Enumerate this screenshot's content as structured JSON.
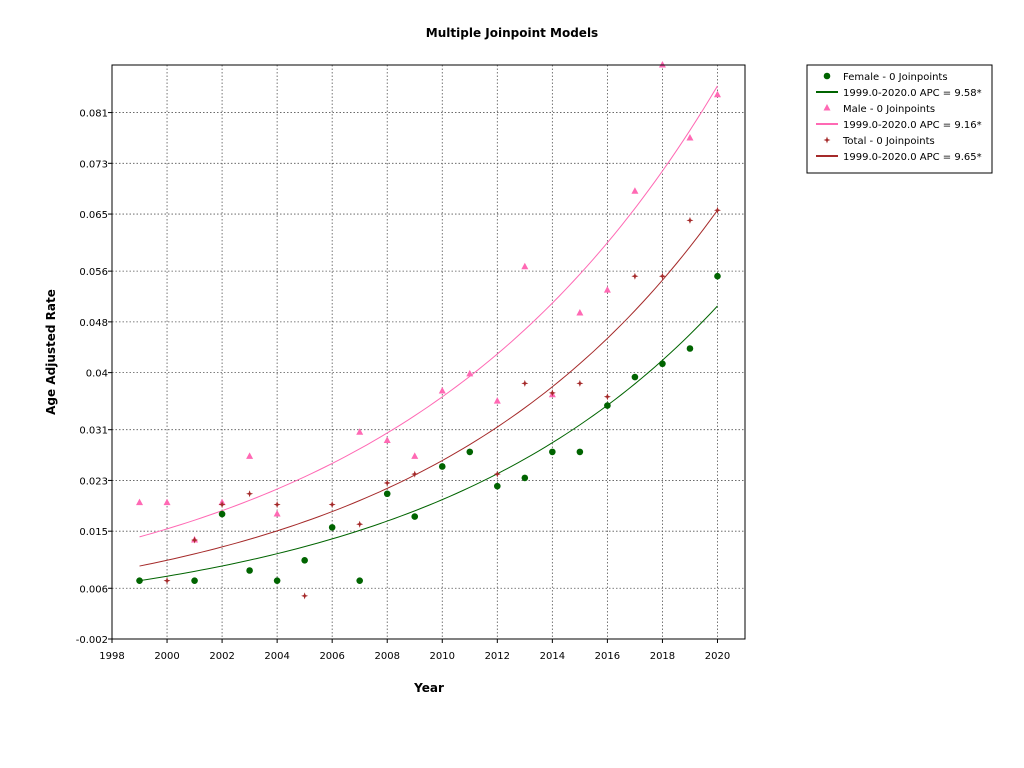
{
  "chart_data": {
    "type": "scatter",
    "title": "Multiple Joinpoint Models",
    "xlabel": "Year",
    "ylabel": "Age Adjusted Rate",
    "xlim": [
      1998,
      2021
    ],
    "ylim": [
      -0.002,
      0.0885
    ],
    "xticks": [
      "1998",
      "2000",
      "2002",
      "2004",
      "2006",
      "2008",
      "2010",
      "2012",
      "2014",
      "2016",
      "2018",
      "2020"
    ],
    "yticks": [
      "-0.002",
      "0.006",
      "0.015",
      "0.023",
      "0.031",
      "0.04",
      "0.048",
      "0.056",
      "0.065",
      "0.073",
      "0.081"
    ],
    "grid": true,
    "legend_position": "outside-right-top",
    "x": [
      1999,
      2000,
      2001,
      2002,
      2003,
      2004,
      2005,
      2006,
      2007,
      2008,
      2009,
      2010,
      2011,
      2012,
      2013,
      2014,
      2015,
      2016,
      2017,
      2018,
      2019,
      2020
    ],
    "series": [
      {
        "name": "Female - 0 Joinpoints",
        "marker": "circle",
        "color": "#006400",
        "values": [
          0.0072,
          null,
          0.0072,
          0.0177,
          0.0088,
          0.0072,
          0.0104,
          0.0156,
          0.0072,
          0.0209,
          0.0173,
          0.0252,
          0.0275,
          0.0221,
          0.0234,
          0.0275,
          0.0275,
          0.0348,
          0.0393,
          0.0414,
          0.0438,
          0.0552
        ]
      },
      {
        "name": "Male - 0 Joinpoints",
        "marker": "triangle",
        "color": "#ff69b4",
        "values": [
          0.0195,
          0.0195,
          0.0136,
          0.0195,
          0.0268,
          0.0177,
          null,
          null,
          0.0306,
          0.0293,
          0.0268,
          0.0371,
          0.0398,
          0.0355,
          0.0567,
          0.0365,
          0.0494,
          0.053,
          0.0686,
          0.0886,
          0.077,
          0.0838
        ]
      },
      {
        "name": "Total - 0 Joinpoints",
        "marker": "star",
        "color": "#a52a2a",
        "values": [
          0.0072,
          0.0072,
          0.0136,
          0.0192,
          0.0209,
          0.0192,
          0.0048,
          0.0192,
          0.0161,
          0.0226,
          0.024,
          0.0252,
          0.0275,
          0.024,
          0.0383,
          0.0368,
          0.0383,
          0.0362,
          0.0552,
          0.0552,
          0.064,
          0.0656
        ]
      }
    ],
    "fits": [
      {
        "label": "1999.0-2020.0 APC  =  9.58*",
        "color": "#006400",
        "start_value": 0.0072,
        "end_value": 0.0505
      },
      {
        "label": "1999.0-2020.0 APC  =  9.16*",
        "color": "#ff69b4",
        "start_value": 0.0141,
        "end_value": 0.0852
      },
      {
        "label": "1999.0-2020.0 APC  =  9.65*",
        "color": "#a52a2a",
        "start_value": 0.0095,
        "end_value": 0.0656
      }
    ]
  }
}
